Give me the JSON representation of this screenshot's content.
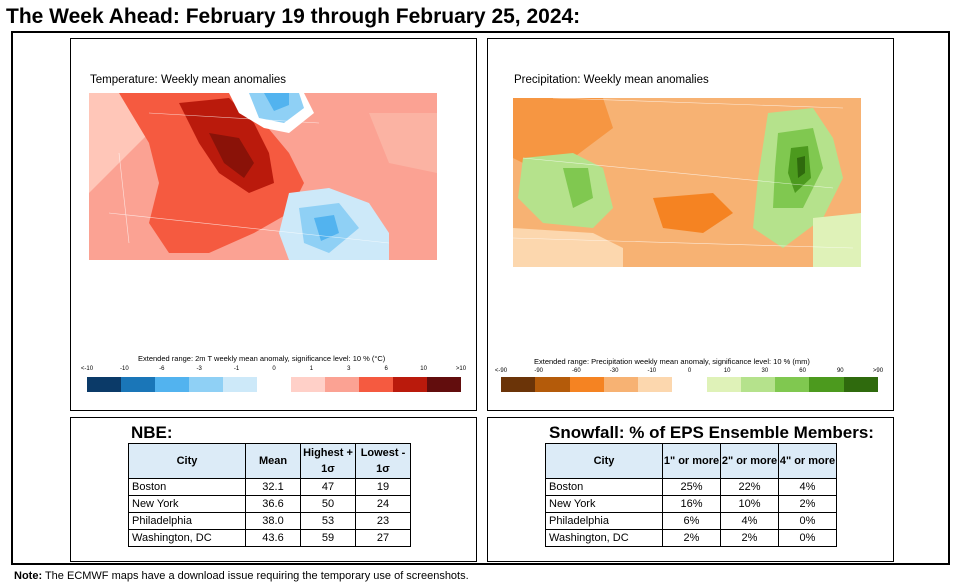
{
  "title": "The Week Ahead: February 19 through February 25, 2024:",
  "temperature_map": {
    "title": "Temperature: Weekly mean anomalies",
    "scale_title": "Extended range: 2m T weekly mean anomaly, significance level: 10 % (°C)",
    "ticks": [
      "<-10",
      "-10",
      "-6",
      "-3",
      "-1",
      "0",
      "1",
      "3",
      "6",
      "10",
      ">10"
    ],
    "colors": [
      "#0b3a68",
      "#1a76b8",
      "#52b3ef",
      "#8fd0f5",
      "#cde9f9",
      "#ffffff",
      "#ffd0c8",
      "#fba293",
      "#f55a40",
      "#ba1a0c",
      "#620d0d"
    ]
  },
  "precip_map": {
    "title": "Precipitation: Weekly mean anomalies",
    "scale_title": "Extended range: Precipitation weekly mean anomaly, significance level: 10 % (mm)",
    "ticks": [
      "<-90",
      "-90",
      "-60",
      "-30",
      "-10",
      "0",
      "10",
      "30",
      "60",
      "90",
      ">90"
    ],
    "colors": [
      "#6b3408",
      "#b45b0a",
      "#f58322",
      "#f7b273",
      "#fcd7ae",
      "#ffffff",
      "#dff2b8",
      "#b5e28c",
      "#80c850",
      "#4c9a1e",
      "#2f6a0d"
    ]
  },
  "nbe": {
    "title": "NBE:",
    "headers": [
      "City",
      "Mean",
      "Highest + 1σ",
      "Lowest - 1σ"
    ],
    "rows": [
      [
        "Boston",
        "32.1",
        "47",
        "19"
      ],
      [
        "New York",
        "36.6",
        "50",
        "24"
      ],
      [
        "Philadelphia",
        "38.0",
        "53",
        "23"
      ],
      [
        "Washington, DC",
        "43.6",
        "59",
        "27"
      ]
    ]
  },
  "snowfall": {
    "title": "Snowfall: % of EPS Ensemble Members:",
    "headers": [
      "City",
      "1\" or more",
      "2\" or more",
      "4\" or more"
    ],
    "rows": [
      [
        "Boston",
        "25%",
        "22%",
        "4%"
      ],
      [
        "New York",
        "16%",
        "10%",
        "2%"
      ],
      [
        "Philadelphia",
        "6%",
        "4%",
        "0%"
      ],
      [
        "Washington, DC",
        "2%",
        "2%",
        "0%"
      ]
    ]
  },
  "note": {
    "label": "Note:",
    "text": " The ECMWF maps have a download issue requiring the temporary use of screenshots."
  }
}
